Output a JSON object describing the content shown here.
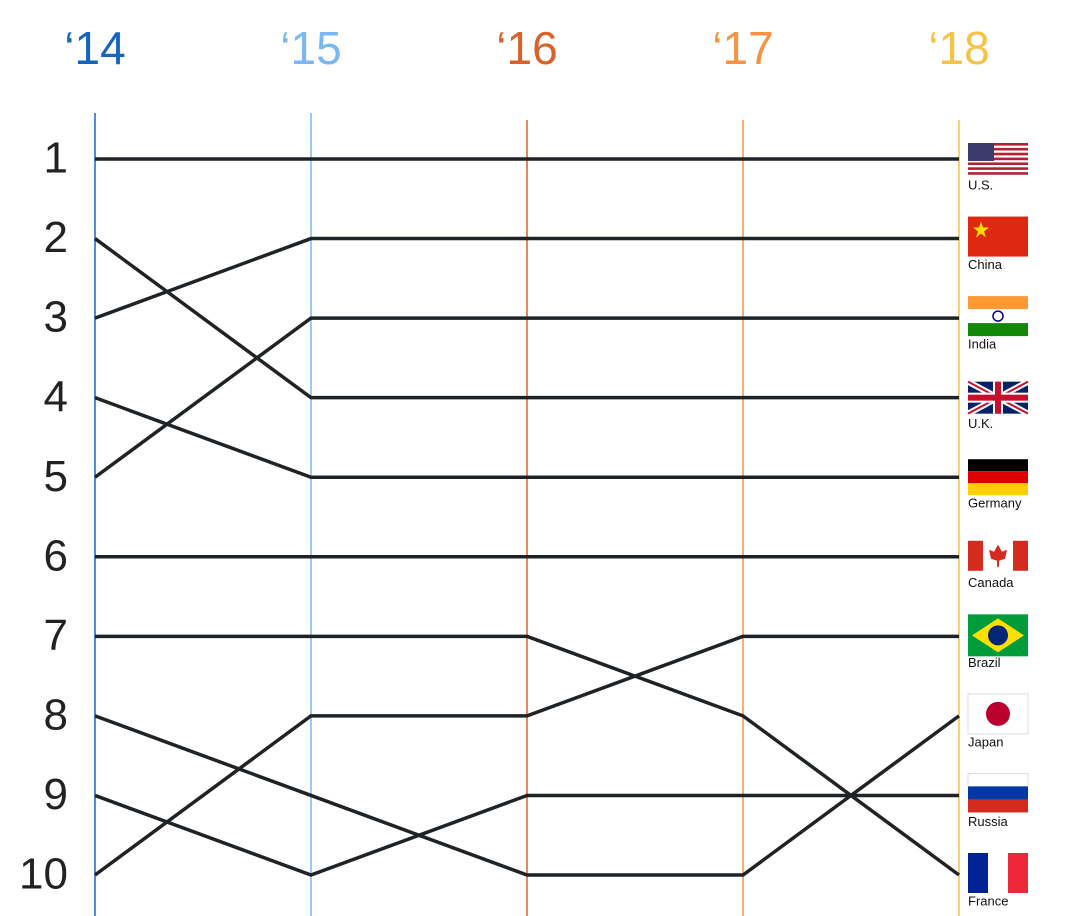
{
  "chart_data": {
    "type": "bump",
    "categories": [
      "‘14",
      "‘15",
      "‘16",
      "‘17",
      "‘18"
    ],
    "category_colors": [
      "#1565c0",
      "#7ab8f5",
      "#d9622b",
      "#f59342",
      "#f5c242"
    ],
    "ylim": [
      1,
      10
    ],
    "y_inverted": true,
    "yticks": [
      1,
      2,
      3,
      4,
      5,
      6,
      7,
      8,
      9,
      10
    ],
    "line_color": "#1f2326",
    "series": [
      {
        "name": "U.S.",
        "values": [
          1,
          1,
          1,
          1,
          1
        ]
      },
      {
        "name": "China",
        "values": [
          3,
          2,
          2,
          2,
          2
        ]
      },
      {
        "name": "India",
        "values": [
          5,
          3,
          3,
          3,
          3
        ]
      },
      {
        "name": "U.K.",
        "values": [
          2,
          4,
          4,
          4,
          4
        ]
      },
      {
        "name": "Germany",
        "values": [
          4,
          5,
          5,
          5,
          5
        ]
      },
      {
        "name": "Canada",
        "values": [
          6,
          6,
          6,
          6,
          6
        ]
      },
      {
        "name": "Brazil",
        "values": [
          10,
          8,
          8,
          7,
          7
        ]
      },
      {
        "name": "Japan",
        "values": [
          8,
          9,
          10,
          10,
          8
        ]
      },
      {
        "name": "Russia",
        "values": [
          9,
          10,
          9,
          9,
          9
        ]
      },
      {
        "name": "France",
        "values": [
          7,
          7,
          7,
          8,
          10
        ]
      }
    ]
  }
}
